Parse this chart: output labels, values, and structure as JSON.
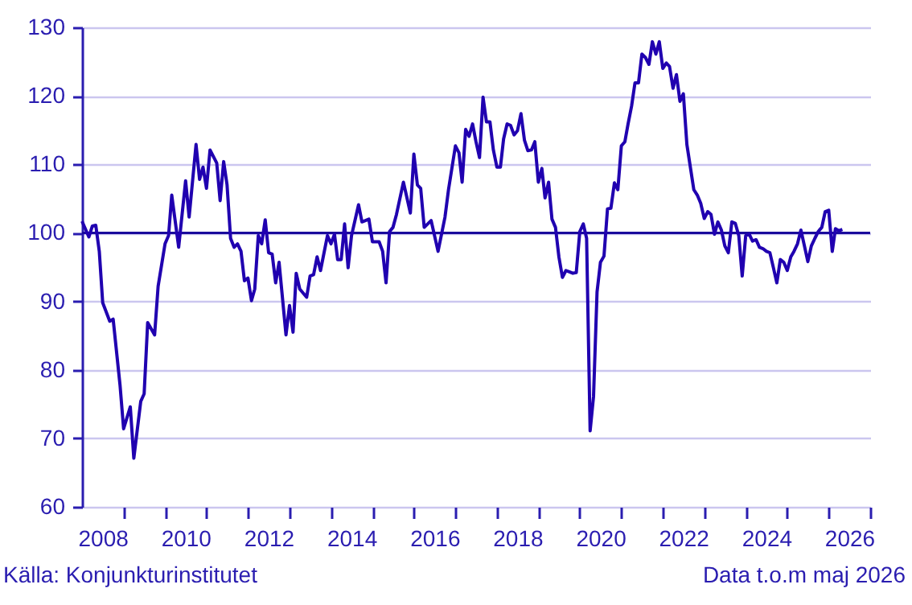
{
  "chart_data": {
    "type": "line",
    "x": [
      "2008-01",
      "2008-03",
      "2008-04",
      "2008-05",
      "2008-06",
      "2008-07",
      "2008-09",
      "2008-10",
      "2008-12",
      "2009-01",
      "2009-03",
      "2009-04",
      "2009-06",
      "2009-07",
      "2009-08",
      "2009-10",
      "2009-11",
      "2010-01",
      "2010-02",
      "2010-03",
      "2010-05",
      "2010-07",
      "2010-08",
      "2010-10",
      "2010-11",
      "2010-12",
      "2011-01",
      "2011-02",
      "2011-04",
      "2011-05",
      "2011-06",
      "2011-07",
      "2011-08",
      "2011-09",
      "2011-10",
      "2011-11",
      "2011-12",
      "2012-01",
      "2012-02",
      "2012-03",
      "2012-04",
      "2012-05",
      "2012-06",
      "2012-07",
      "2012-08",
      "2012-09",
      "2012-10",
      "2012-12",
      "2013-01",
      "2013-02",
      "2013-03",
      "2013-04",
      "2013-06",
      "2013-07",
      "2013-08",
      "2013-09",
      "2013-10",
      "2013-12",
      "2014-01",
      "2014-02",
      "2014-03",
      "2014-04",
      "2014-05",
      "2014-06",
      "2014-07",
      "2014-09",
      "2014-10",
      "2014-12",
      "2015-01",
      "2015-03",
      "2015-04",
      "2015-05",
      "2015-06",
      "2015-07",
      "2015-08",
      "2015-10",
      "2015-12",
      "2016-01",
      "2016-02",
      "2016-03",
      "2016-04",
      "2016-06",
      "2016-08",
      "2016-10",
      "2016-11",
      "2017-01",
      "2017-02",
      "2017-03",
      "2017-04",
      "2017-05",
      "2017-06",
      "2017-07",
      "2017-08",
      "2017-09",
      "2017-10",
      "2017-11",
      "2017-12",
      "2018-01",
      "2018-02",
      "2018-03",
      "2018-04",
      "2018-05",
      "2018-06",
      "2018-07",
      "2018-08",
      "2018-09",
      "2018-10",
      "2018-11",
      "2018-12",
      "2019-01",
      "2019-02",
      "2019-03",
      "2019-04",
      "2019-05",
      "2019-06",
      "2019-07",
      "2019-08",
      "2019-09",
      "2019-10",
      "2019-11",
      "2019-12",
      "2020-01",
      "2020-02",
      "2020-03",
      "2020-04",
      "2020-05",
      "2020-06",
      "2020-07",
      "2020-08",
      "2020-09",
      "2020-10",
      "2020-11",
      "2020-12",
      "2021-01",
      "2021-02",
      "2021-03",
      "2021-04",
      "2021-05",
      "2021-06",
      "2021-07",
      "2021-08",
      "2021-09",
      "2021-10",
      "2021-11",
      "2021-12",
      "2022-01",
      "2022-02",
      "2022-03",
      "2022-04",
      "2022-05",
      "2022-06",
      "2022-07",
      "2022-08",
      "2022-10",
      "2022-11",
      "2022-12",
      "2023-01",
      "2023-02",
      "2023-03",
      "2023-04",
      "2023-05",
      "2023-06",
      "2023-07",
      "2023-08",
      "2023-09",
      "2023-10",
      "2023-11",
      "2023-12",
      "2024-01",
      "2024-02",
      "2024-03",
      "2024-04",
      "2024-05",
      "2024-06",
      "2024-07",
      "2024-08",
      "2024-09",
      "2024-10",
      "2024-11",
      "2024-12",
      "2025-01",
      "2025-02",
      "2025-03",
      "2025-04",
      "2025-05",
      "2025-06",
      "2025-07",
      "2025-08",
      "2025-09",
      "2025-10",
      "2025-11",
      "2025-12",
      "2026-01",
      "2026-02",
      "2026-03",
      "2026-04",
      "2026-05"
    ],
    "series": [
      {
        "color": "#2000b0",
        "values": [
          101.7,
          99.4,
          101.0,
          101.1,
          97.3,
          89.8,
          87.1,
          87.4,
          77.7,
          71.4,
          74.6,
          67.1,
          75.4,
          76.5,
          86.9,
          85.1,
          92.2,
          98.4,
          99.6,
          105.5,
          97.9,
          107.6,
          102.3,
          112.9,
          107.8,
          109.6,
          106.5,
          112.1,
          110.2,
          104.7,
          110.4,
          107.0,
          99.2,
          97.9,
          98.4,
          97.3,
          93.0,
          93.4,
          90.1,
          91.8,
          99.6,
          98.4,
          101.9,
          97.1,
          96.9,
          92.7,
          95.7,
          85.1,
          89.4,
          85.5,
          94.1,
          91.8,
          90.6,
          93.7,
          93.9,
          96.5,
          94.5,
          99.6,
          98.4,
          99.8,
          96.1,
          96.1,
          101.3,
          94.9,
          99.6,
          104.1,
          101.6,
          102.0,
          98.7,
          98.7,
          97.3,
          92.7,
          100.2,
          100.8,
          102.7,
          107.4,
          102.9,
          111.5,
          107.0,
          106.5,
          100.8,
          101.8,
          97.3,
          102.3,
          106.3,
          112.7,
          111.7,
          107.4,
          115.1,
          114.1,
          115.9,
          113.3,
          111.0,
          119.8,
          116.2,
          116.2,
          112.1,
          109.6,
          109.6,
          113.7,
          115.9,
          115.7,
          114.3,
          114.9,
          117.4,
          113.5,
          112.0,
          112.1,
          113.3,
          107.4,
          109.4,
          105.1,
          107.4,
          102.0,
          100.8,
          96.5,
          93.5,
          94.5,
          94.3,
          94.1,
          94.2,
          100.2,
          101.3,
          99.2,
          71.1,
          76.1,
          91.4,
          95.7,
          96.6,
          103.5,
          103.6,
          107.3,
          106.3,
          112.7,
          113.3,
          115.9,
          118.5,
          121.9,
          121.9,
          126.1,
          125.6,
          124.6,
          127.9,
          126.1,
          127.9,
          124.0,
          124.8,
          124.3,
          121.1,
          123.1,
          119.2,
          120.3,
          112.9,
          106.3,
          105.5,
          104.3,
          102.1,
          103.1,
          102.7,
          99.8,
          101.6,
          100.4,
          98.1,
          97.1,
          101.6,
          101.4,
          99.6,
          93.7,
          99.6,
          99.8,
          98.8,
          99.0,
          97.9,
          97.7,
          97.3,
          97.1,
          94.9,
          92.7,
          96.1,
          95.7,
          94.5,
          96.5,
          97.3,
          98.4,
          100.4,
          98.1,
          95.8,
          98.1,
          99.2,
          100.2,
          100.8,
          103.1,
          103.3,
          97.3,
          100.6,
          100.3,
          100.5
        ]
      }
    ],
    "xlim": [
      "2008-01",
      "2027-01"
    ],
    "xticks": [
      {
        "value": "2008-07",
        "label": "2008"
      },
      {
        "value": "2009",
        "label": null
      },
      {
        "value": "2010",
        "label": null
      },
      {
        "value": "2010-07",
        "label": "2010"
      },
      {
        "value": "2011",
        "label": null
      },
      {
        "value": "2012",
        "label": null
      },
      {
        "value": "2012-07",
        "label": "2012"
      },
      {
        "value": "2013",
        "label": null
      },
      {
        "value": "2014",
        "label": null
      },
      {
        "value": "2014-07",
        "label": "2014"
      },
      {
        "value": "2015",
        "label": null
      },
      {
        "value": "2016",
        "label": null
      },
      {
        "value": "2016-07",
        "label": "2016"
      },
      {
        "value": "2017",
        "label": null
      },
      {
        "value": "2018",
        "label": null
      },
      {
        "value": "2018-07",
        "label": "2018"
      },
      {
        "value": "2019",
        "label": null
      },
      {
        "value": "2020",
        "label": null
      },
      {
        "value": "2020-07",
        "label": "2020"
      },
      {
        "value": "2021",
        "label": null
      },
      {
        "value": "2022",
        "label": null
      },
      {
        "value": "2022-07",
        "label": "2022"
      },
      {
        "value": "2023",
        "label": null
      },
      {
        "value": "2024",
        "label": null
      },
      {
        "value": "2024-07",
        "label": "2024"
      },
      {
        "value": "2025",
        "label": null
      },
      {
        "value": "2026",
        "label": null
      },
      {
        "value": "2026-07",
        "label": "2026"
      },
      {
        "value": "2027",
        "label": null
      }
    ],
    "ylim": [
      60,
      130
    ],
    "yticks": [
      60,
      70,
      80,
      90,
      100,
      110,
      120,
      130
    ],
    "grid": "y",
    "marker": "none",
    "line_style": "solid",
    "ref_lines": [
      {
        "axis": "y",
        "value": 100,
        "color": "#1a0a9c"
      }
    ],
    "annotations": [
      "Källa: Konjunkturinstitutet",
      "Data t.o.m maj 2026"
    ]
  }
}
